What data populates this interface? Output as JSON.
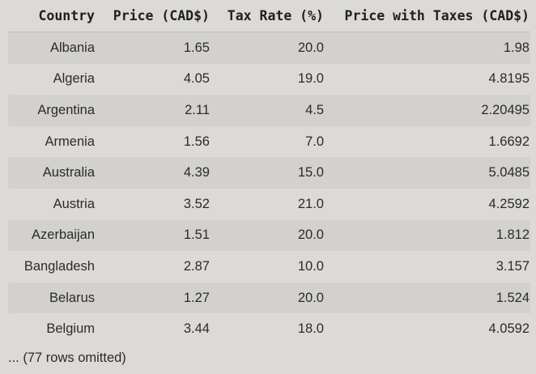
{
  "table": {
    "headers": [
      "Country",
      "Price (CAD$)",
      "Tax Rate (%)",
      "Price with Taxes (CAD$)"
    ],
    "rows": [
      [
        "Albania",
        "1.65",
        "20.0",
        "1.98"
      ],
      [
        "Algeria",
        "4.05",
        "19.0",
        "4.8195"
      ],
      [
        "Argentina",
        "2.11",
        "4.5",
        "2.20495"
      ],
      [
        "Armenia",
        "1.56",
        "7.0",
        "1.6692"
      ],
      [
        "Australia",
        "4.39",
        "15.0",
        "5.0485"
      ],
      [
        "Austria",
        "3.52",
        "21.0",
        "4.2592"
      ],
      [
        "Azerbaijan",
        "1.51",
        "20.0",
        "1.812"
      ],
      [
        "Bangladesh",
        "2.87",
        "10.0",
        "3.157"
      ],
      [
        "Belarus",
        "1.27",
        "20.0",
        "1.524"
      ],
      [
        "Belgium",
        "3.44",
        "18.0",
        "4.0592"
      ]
    ],
    "footer": "... (77 rows omitted)"
  }
}
